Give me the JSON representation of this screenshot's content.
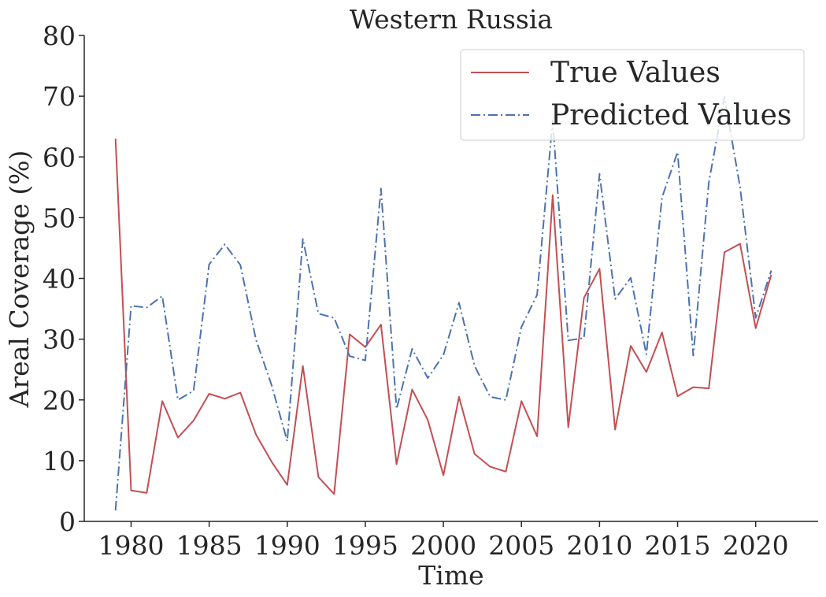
{
  "chart_data": {
    "type": "line",
    "title": "Western Russia",
    "xlabel": "Time",
    "ylabel": "Areal Coverage (%)",
    "xlim": [
      1977,
      2024
    ],
    "ylim": [
      0,
      80
    ],
    "xticks": [
      "1980",
      "1985",
      "1990",
      "1995",
      "2000",
      "2005",
      "2010",
      "2015",
      "2020"
    ],
    "yticks": [
      "0",
      "10",
      "20",
      "30",
      "40",
      "50",
      "60",
      "70",
      "80"
    ],
    "grid": false,
    "legend_position": "top-right",
    "x": [
      1979,
      1980,
      1981,
      1982,
      1983,
      1984,
      1985,
      1986,
      1987,
      1988,
      1989,
      1990,
      1991,
      1992,
      1993,
      1994,
      1995,
      1996,
      1997,
      1998,
      1999,
      2000,
      2001,
      2002,
      2003,
      2004,
      2005,
      2006,
      2007,
      2008,
      2009,
      2010,
      2011,
      2012,
      2013,
      2014,
      2015,
      2016,
      2017,
      2018,
      2019,
      2020,
      2021
    ],
    "series": [
      {
        "name": "True Values",
        "color": "#c44e52",
        "style": "solid",
        "values": [
          63.0,
          5.1,
          4.7,
          19.8,
          13.8,
          16.6,
          21.0,
          20.2,
          21.2,
          14.3,
          9.8,
          6.0,
          25.6,
          7.3,
          4.5,
          30.8,
          28.7,
          32.4,
          9.4,
          21.7,
          16.7,
          7.6,
          20.5,
          11.1,
          9.0,
          8.2,
          19.8,
          14.0,
          53.7,
          15.5,
          36.8,
          41.6,
          15.1,
          28.9,
          24.6,
          31.1,
          20.6,
          22.1,
          21.9,
          44.3,
          45.7,
          31.8,
          40.6
        ]
      },
      {
        "name": "Predicted Values",
        "color": "#4c72b0",
        "style": "dashdot",
        "values": [
          1.8,
          35.5,
          35.2,
          37.1,
          20.0,
          21.5,
          42.3,
          45.6,
          42.2,
          29.9,
          22.4,
          13.2,
          46.5,
          34.2,
          33.5,
          27.2,
          26.5,
          54.8,
          18.5,
          28.4,
          23.6,
          27.4,
          36.0,
          25.6,
          20.5,
          20.0,
          32.0,
          37.3,
          66.0,
          29.8,
          30.2,
          57.2,
          36.6,
          40.1,
          27.5,
          53.3,
          60.8,
          27.3,
          55.8,
          69.9,
          55.0,
          33.5,
          41.3
        ]
      }
    ]
  }
}
